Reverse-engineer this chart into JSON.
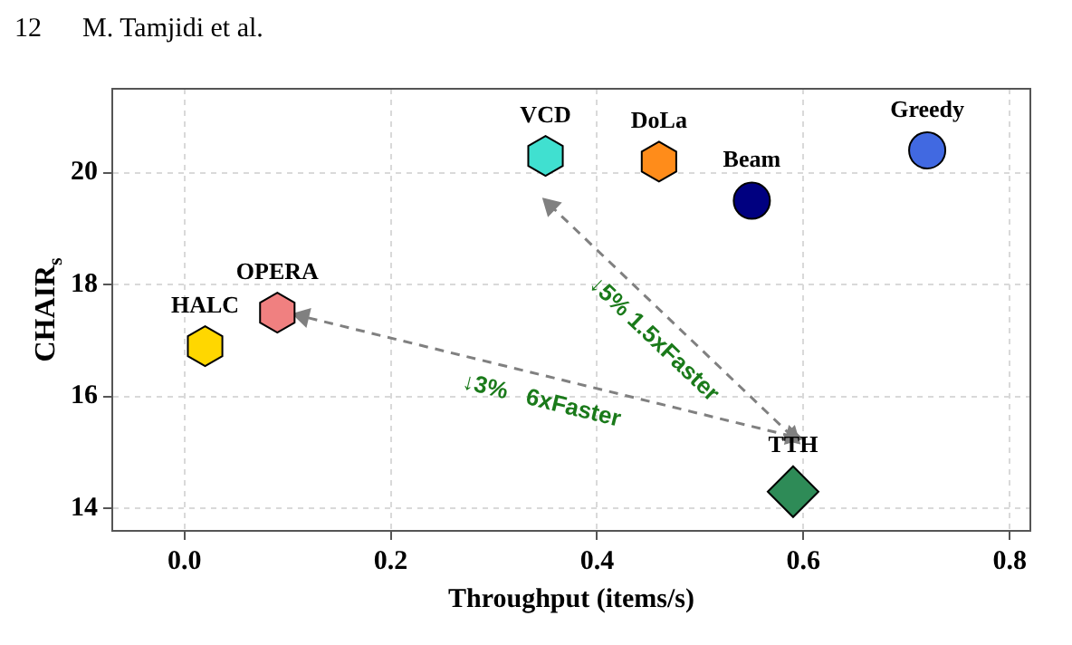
{
  "chart_data": {
    "type": "scatter",
    "xlabel": "Throughput (items/s)",
    "ylabel": "CHAIR$_{s}$",
    "xlim": [
      -0.07,
      0.82
    ],
    "ylim": [
      13.6,
      21.5
    ],
    "xticks": [
      {
        "value": 0,
        "label": "0.0"
      },
      {
        "value": 0.2,
        "label": "0.2"
      },
      {
        "value": 0.4,
        "label": "0.4"
      },
      {
        "value": 0.6,
        "label": "0.6"
      },
      {
        "value": 0.8,
        "label": "0.8"
      }
    ],
    "yticks": [
      14,
      16,
      18,
      20
    ],
    "grid": true,
    "legend": false,
    "series": [
      {
        "name": "HALC",
        "color": "#ffd700",
        "x": [
          0.02
        ],
        "values": [
          16.9
        ]
      },
      {
        "name": "OPERA",
        "color": "#f08080",
        "x": [
          0.09
        ],
        "values": [
          17.5
        ]
      },
      {
        "name": "VCD",
        "color": "#40e0d0",
        "x": [
          0.35
        ],
        "values": [
          20.3
        ]
      },
      {
        "name": "DoLa",
        "color": "#ff8c1a",
        "x": [
          0.46
        ],
        "values": [
          20.2
        ]
      },
      {
        "name": "Beam",
        "marker": "circle",
        "color": "#000080",
        "x": [
          0.55
        ],
        "values": [
          19.5
        ]
      },
      {
        "name": "Greedy",
        "marker": "circle",
        "color": "#4169e1",
        "x": [
          0.72
        ],
        "values": [
          20.4
        ]
      },
      {
        "name": "TTH",
        "marker": "diamond",
        "color": "#2e8b57",
        "x": [
          0.59
        ],
        "values": [
          14.3
        ]
      },
      {
        "type": "line",
        "line_style": "dashed",
        "marker": "triangle",
        "color": "#808080",
        "x": [
          0.589,
          0.115
        ],
        "values": [
          15.29,
          17.43
        ]
      },
      {
        "type": "line",
        "line_style": "dashed",
        "marker": "triangle",
        "color": "#808080",
        "x": [
          0.589,
          0.355
        ],
        "values": [
          15.29,
          19.41
        ]
      }
    ],
    "annotations": [
      "12      M. Tamjidi et al.",
      "↓3%   6xFaster",
      "↓5% 1.5xFaster"
    ]
  }
}
